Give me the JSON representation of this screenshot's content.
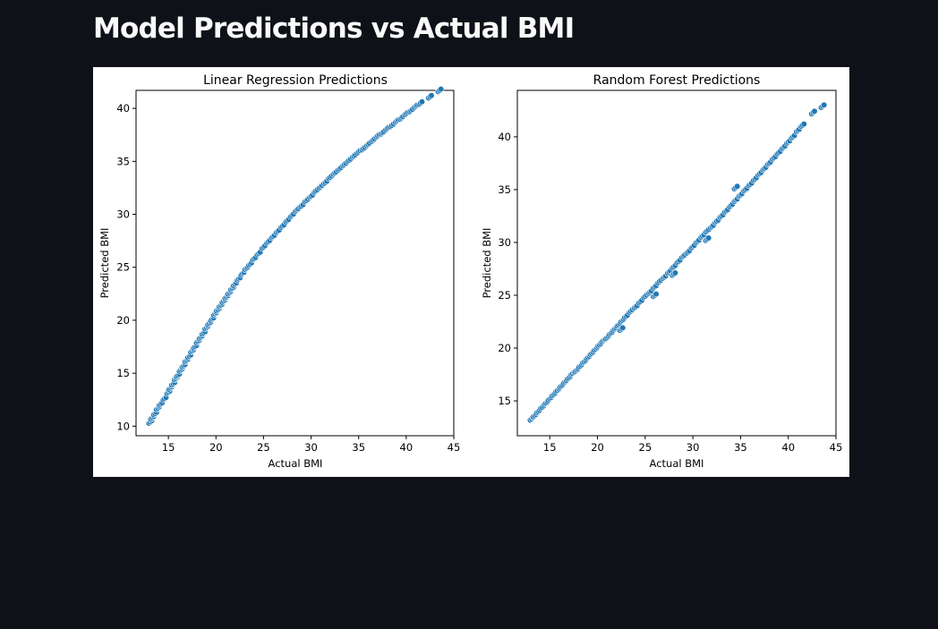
{
  "page": {
    "title": "Model Predictions vs Actual BMI"
  },
  "chart_data": [
    {
      "type": "scatter",
      "title": "Linear Regression Predictions",
      "xlabel": "Actual BMI",
      "ylabel": "Predicted BMI",
      "xlim": [
        11.6,
        45
      ],
      "ylim": [
        9.1,
        41.7
      ],
      "xticks": [
        15,
        20,
        25,
        30,
        35,
        40,
        45
      ],
      "yticks": [
        10,
        15,
        20,
        25,
        30,
        35,
        40
      ],
      "marker_color": "#1f77b4",
      "grid": false,
      "series": [
        {
          "x": [
            13.1,
            13.3,
            13.6,
            13.9,
            14.2,
            14.6,
            15.0,
            15.2,
            15.5,
            15.8,
            16.0,
            16.3,
            16.6,
            16.9,
            17.2,
            17.5,
            17.8,
            18.1,
            18.4,
            18.7,
            19.0,
            19.3,
            19.6,
            19.9,
            20.2,
            20.5,
            20.8,
            21.1,
            21.4,
            21.7,
            22.0,
            22.4,
            22.8,
            23.2,
            23.6,
            24.0,
            24.5,
            25.0,
            25.5,
            26.0,
            26.5,
            27.0,
            27.5,
            28.0,
            28.5,
            29.0,
            29.5,
            30.0,
            30.5,
            31.0,
            31.5,
            32.0,
            32.5,
            33.0,
            33.5,
            34.0,
            34.5,
            35.0,
            35.5,
            36.0,
            36.5,
            37.0,
            37.5,
            38.0,
            38.5,
            39.0,
            39.5,
            40.0,
            40.5,
            41.0,
            41.5,
            42.5,
            43.5
          ],
          "y": [
            10.4,
            10.8,
            11.2,
            11.7,
            12.1,
            12.6,
            13.2,
            13.6,
            14.0,
            14.5,
            14.8,
            15.3,
            15.7,
            16.2,
            16.6,
            17.1,
            17.5,
            18.0,
            18.4,
            18.8,
            19.3,
            19.7,
            20.1,
            20.6,
            21.0,
            21.4,
            21.8,
            22.2,
            22.6,
            23.0,
            23.4,
            23.9,
            24.4,
            24.9,
            25.3,
            25.8,
            26.3,
            26.9,
            27.4,
            27.9,
            28.4,
            28.9,
            29.4,
            29.9,
            30.4,
            30.8,
            31.3,
            31.7,
            32.2,
            32.6,
            33.0,
            33.5,
            33.9,
            34.3,
            34.7,
            35.1,
            35.5,
            35.9,
            36.2,
            36.6,
            37.0,
            37.4,
            37.7,
            38.1,
            38.4,
            38.8,
            39.1,
            39.5,
            39.8,
            40.2,
            40.5,
            41.1,
            41.7
          ]
        }
      ]
    },
    {
      "type": "scatter",
      "title": "Random Forest Predictions",
      "xlabel": "Actual BMI",
      "ylabel": "Predicted BMI",
      "xlim": [
        11.6,
        45
      ],
      "ylim": [
        11.7,
        44.4
      ],
      "xticks": [
        15,
        20,
        25,
        30,
        35,
        40,
        45
      ],
      "yticks": [
        15,
        20,
        25,
        30,
        35,
        40
      ],
      "marker_color": "#1f77b4",
      "grid": false,
      "series": [
        {
          "x": [
            13.1,
            13.4,
            13.8,
            14.2,
            14.6,
            15.0,
            15.4,
            15.8,
            16.2,
            16.6,
            17.0,
            17.4,
            17.8,
            18.2,
            18.6,
            19.0,
            19.4,
            19.8,
            20.2,
            20.6,
            21.0,
            21.4,
            21.8,
            22.2,
            22.6,
            23.0,
            23.5,
            24.0,
            24.5,
            25.0,
            25.5,
            26.0,
            26.5,
            27.0,
            27.5,
            28.0,
            28.5,
            29.0,
            29.5,
            30.0,
            30.5,
            31.0,
            31.5,
            32.0,
            32.5,
            33.0,
            33.5,
            34.0,
            34.5,
            35.0,
            35.5,
            36.0,
            36.5,
            37.0,
            37.5,
            38.0,
            38.5,
            39.0,
            39.5,
            40.0,
            40.5,
            41.0,
            41.5,
            42.6,
            43.6,
            26.0,
            28.0,
            31.5,
            22.5,
            34.5
          ],
          "y": [
            13.3,
            13.6,
            14.0,
            14.4,
            14.8,
            15.2,
            15.6,
            16.0,
            16.4,
            16.8,
            17.2,
            17.6,
            17.9,
            18.3,
            18.7,
            19.1,
            19.5,
            19.9,
            20.3,
            20.7,
            21.0,
            21.4,
            21.8,
            22.2,
            22.6,
            23.0,
            23.5,
            23.9,
            24.4,
            24.9,
            25.3,
            25.8,
            26.3,
            26.7,
            27.2,
            27.7,
            28.2,
            28.7,
            29.1,
            29.6,
            30.1,
            30.6,
            31.1,
            31.5,
            32.0,
            32.5,
            33.0,
            33.5,
            34.0,
            34.5,
            35.0,
            35.5,
            36.0,
            36.5,
            37.0,
            37.5,
            38.0,
            38.5,
            39.0,
            39.5,
            40.0,
            40.6,
            41.1,
            42.3,
            42.9,
            25.0,
            27.0,
            30.3,
            21.8,
            35.2
          ]
        }
      ]
    }
  ]
}
